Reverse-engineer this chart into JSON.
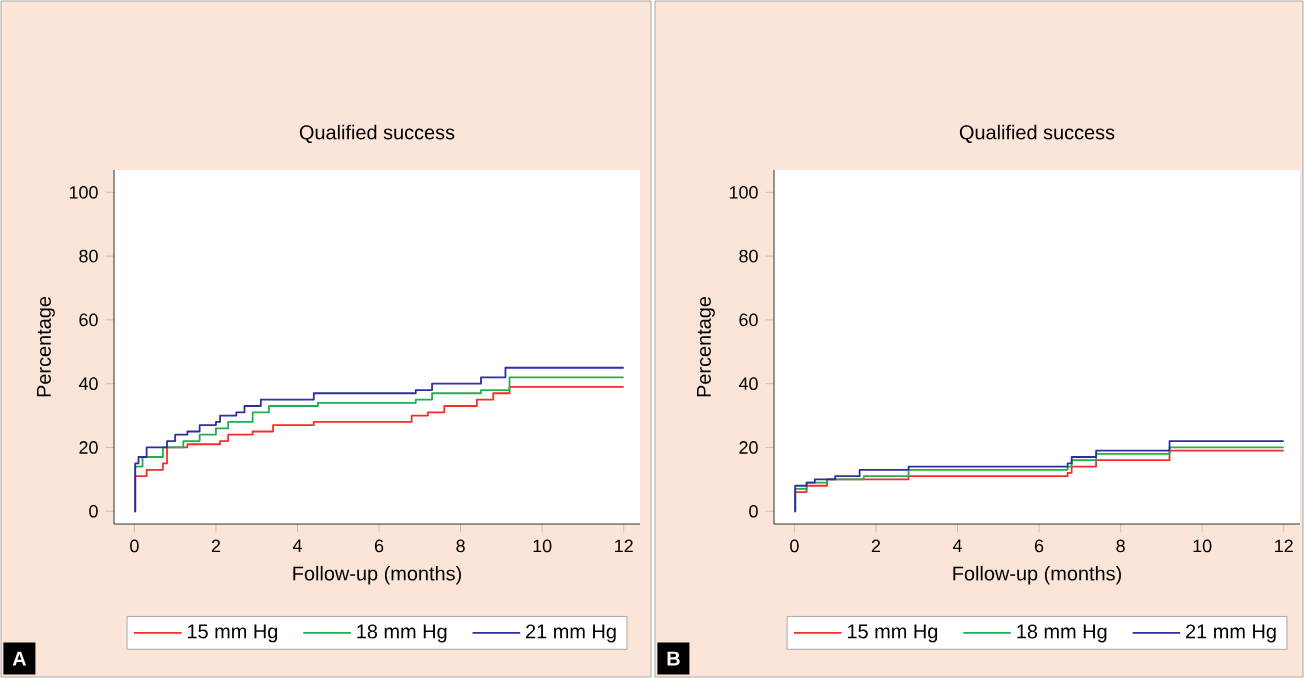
{
  "chart_data": [
    {
      "type": "step",
      "title": "Qualified success",
      "xlabel": "Follow-up (months)",
      "ylabel": "Percentage",
      "xlim": [
        -0.5,
        12.4
      ],
      "ylim": [
        -4,
        107
      ],
      "xticks": [
        0,
        2,
        4,
        6,
        8,
        10,
        12
      ],
      "yticks": [
        0,
        20,
        40,
        60,
        80,
        100
      ],
      "legend": "bottom",
      "marker": "none",
      "line_style": "solid",
      "grid": false,
      "annotations": [
        "A"
      ],
      "series": [
        {
          "name": "15 mm Hg",
          "color": "#ff2a2a",
          "x": [
            0,
            0.02,
            0.3,
            0.7,
            0.8,
            1.3,
            2.1,
            2.3,
            2.9,
            3.4,
            4.4,
            6.8,
            7.2,
            7.6,
            8.4,
            8.8,
            9.2,
            12
          ],
          "values": [
            0,
            11,
            13,
            15,
            20,
            21,
            22,
            24,
            25,
            27,
            28,
            30,
            31,
            33,
            35,
            37,
            39,
            39
          ]
        },
        {
          "name": "18 mm Hg",
          "color": "#1fb050",
          "x": [
            0,
            0.02,
            0.2,
            0.7,
            1.2,
            1.6,
            2.0,
            2.3,
            2.9,
            3.3,
            4.5,
            6.9,
            7.3,
            8.5,
            9.2,
            12
          ],
          "values": [
            0,
            14,
            17,
            20,
            22,
            24,
            26,
            28,
            31,
            33,
            34,
            35,
            37,
            38,
            42,
            42
          ]
        },
        {
          "name": "21 mm Hg",
          "color": "#2e2ea0",
          "x": [
            0,
            0.02,
            0.1,
            0.3,
            0.8,
            1.0,
            1.3,
            1.6,
            2.0,
            2.1,
            2.5,
            2.7,
            3.1,
            4.4,
            6.9,
            7.3,
            8.5,
            9.1,
            12
          ],
          "values": [
            0,
            15,
            17,
            20,
            22,
            24,
            25,
            27,
            28,
            30,
            31,
            33,
            35,
            37,
            38,
            40,
            42,
            45,
            45
          ]
        }
      ]
    },
    {
      "type": "step",
      "title": "Qualified success",
      "xlabel": "Follow-up (months)",
      "ylabel": "Percentage",
      "xlim": [
        -0.5,
        12.4
      ],
      "ylim": [
        -4,
        107
      ],
      "xticks": [
        0,
        2,
        4,
        6,
        8,
        10,
        12
      ],
      "yticks": [
        0,
        20,
        40,
        60,
        80,
        100
      ],
      "legend": "bottom",
      "marker": "none",
      "line_style": "solid",
      "grid": false,
      "annotations": [
        "B"
      ],
      "series": [
        {
          "name": "15 mm Hg",
          "color": "#ff2a2a",
          "x": [
            0,
            0.02,
            0.3,
            0.8,
            2.8,
            6.7,
            6.8,
            7.4,
            9.2,
            12
          ],
          "values": [
            0,
            6,
            8,
            10,
            11,
            12,
            14,
            16,
            19,
            19
          ]
        },
        {
          "name": "18 mm Hg",
          "color": "#1fb050",
          "x": [
            0,
            0.02,
            0.3,
            0.8,
            1.7,
            2.8,
            6.7,
            6.8,
            7.4,
            9.2,
            12
          ],
          "values": [
            0,
            7,
            9,
            10,
            11,
            13,
            14,
            16,
            18,
            20,
            20
          ]
        },
        {
          "name": "21 mm Hg",
          "color": "#2e2ea0",
          "x": [
            0,
            0.02,
            0.3,
            0.5,
            1.0,
            1.6,
            2.8,
            6.7,
            6.8,
            7.4,
            9.2,
            12
          ],
          "values": [
            0,
            8,
            9,
            10,
            11,
            13,
            14,
            15,
            17,
            19,
            22,
            22
          ]
        }
      ]
    }
  ]
}
